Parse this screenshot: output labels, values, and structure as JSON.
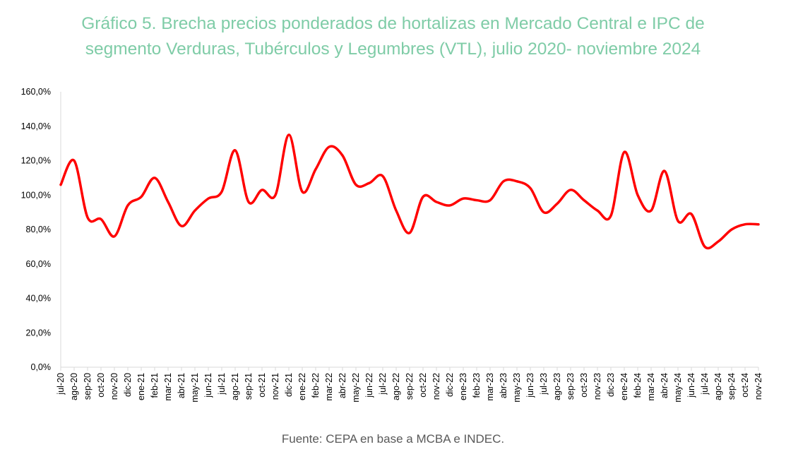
{
  "chart_data": {
    "type": "line",
    "title_line1": "Gráfico 5. Brecha precios ponderados de hortalizas en Mercado Central e IPC de",
    "title_line2": "segmento Verduras, Tubérculos y Legumbres (VTL), julio 2020- noviembre 2024",
    "source": "Fuente: CEPA en base a MCBA e INDEC.",
    "xlabel": "",
    "ylabel": "",
    "ylim": [
      0,
      160
    ],
    "yticks": [
      "0,0%",
      "20,0%",
      "40,0%",
      "60,0%",
      "80,0%",
      "100,0%",
      "120,0%",
      "140,0%",
      "160,0%"
    ],
    "grid": false,
    "legend": "none",
    "series_color": "#ff0000",
    "categories": [
      "jul-20",
      "ago-20",
      "sep-20",
      "oct-20",
      "nov-20",
      "dic-20",
      "ene-21",
      "feb-21",
      "mar-21",
      "abr-21",
      "may-21",
      "jun-21",
      "jul-21",
      "ago-21",
      "sep-21",
      "oct-21",
      "nov-21",
      "dic-21",
      "ene-22",
      "feb-22",
      "mar-22",
      "abr-22",
      "may-22",
      "jun-22",
      "jul-22",
      "ago-22",
      "sep-22",
      "oct-22",
      "nov-22",
      "dic-22",
      "ene-23",
      "feb-23",
      "mar-23",
      "abr-23",
      "may-23",
      "jun-23",
      "jul-23",
      "ago-23",
      "sep-23",
      "oct-23",
      "nov-23",
      "dic-23",
      "ene-24",
      "feb-24",
      "mar-24",
      "abr-24",
      "may-24",
      "jun-24",
      "jul-24",
      "ago-24",
      "sep-24",
      "oct-24",
      "nov-24"
    ],
    "series": [
      {
        "name": "Brecha",
        "values": [
          106,
          120,
          87,
          86,
          76,
          94,
          99,
          110,
          96,
          82,
          91,
          98,
          102,
          126,
          96,
          103,
          100,
          135,
          102,
          115,
          128,
          123,
          106,
          107,
          111,
          91,
          78,
          99,
          96,
          94,
          98,
          97,
          97,
          108,
          108,
          104,
          90,
          95,
          103,
          97,
          91,
          88,
          125,
          100,
          91,
          114,
          85,
          89,
          70,
          73,
          80,
          83,
          83
        ]
      }
    ]
  }
}
